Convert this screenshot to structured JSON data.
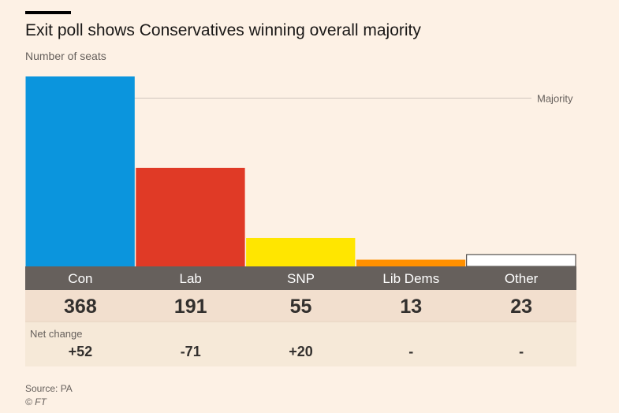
{
  "chart_data": {
    "type": "bar",
    "title": "Exit poll shows Conservatives winning overall majority",
    "ylabel": "Number of seats",
    "categories": [
      "Con",
      "Lab",
      "SNP",
      "Lib Dems",
      "Other"
    ],
    "values": [
      368,
      191,
      55,
      13,
      23
    ],
    "net_change_label": "Net change",
    "net_change": [
      "+52",
      "-71",
      "+20",
      "-",
      "-"
    ],
    "majority": {
      "label": "Majority",
      "value": 326
    },
    "colors": [
      "#0b95dd",
      "#e03a26",
      "#ffe600",
      "#ff9000",
      "#ffffff"
    ],
    "ylim": [
      0,
      368
    ],
    "grid": false,
    "source": "Source: PA",
    "copyright": "© FT"
  }
}
